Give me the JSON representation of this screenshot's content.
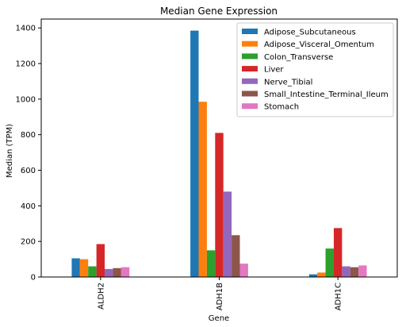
{
  "chart_data": {
    "type": "bar",
    "title": "Median Gene Expression",
    "xlabel": "Gene",
    "ylabel": "Median (TPM)",
    "categories": [
      "ALDH2",
      "ADH1B",
      "ADH1C"
    ],
    "ylim": [
      0,
      1450
    ],
    "yticks": [
      0,
      200,
      400,
      600,
      800,
      1000,
      1200,
      1400
    ],
    "legend_position": "top-right",
    "grid": false,
    "series": [
      {
        "name": "Adipose_Subcutaneous",
        "color": "#1f77b4",
        "values": [
          105,
          1385,
          15
        ]
      },
      {
        "name": "Adipose_Visceral_Omentum",
        "color": "#ff7f0e",
        "values": [
          100,
          985,
          25
        ]
      },
      {
        "name": "Colon_Transverse",
        "color": "#2ca02c",
        "values": [
          60,
          150,
          160
        ]
      },
      {
        "name": "Liver",
        "color": "#d62728",
        "values": [
          185,
          810,
          275
        ]
      },
      {
        "name": "Nerve_Tibial",
        "color": "#9467bd",
        "values": [
          45,
          480,
          60
        ]
      },
      {
        "name": "Small_Intestine_Terminal_Ileum",
        "color": "#8c564b",
        "values": [
          50,
          235,
          55
        ]
      },
      {
        "name": "Stomach",
        "color": "#e377c2",
        "values": [
          55,
          75,
          65
        ]
      }
    ]
  }
}
